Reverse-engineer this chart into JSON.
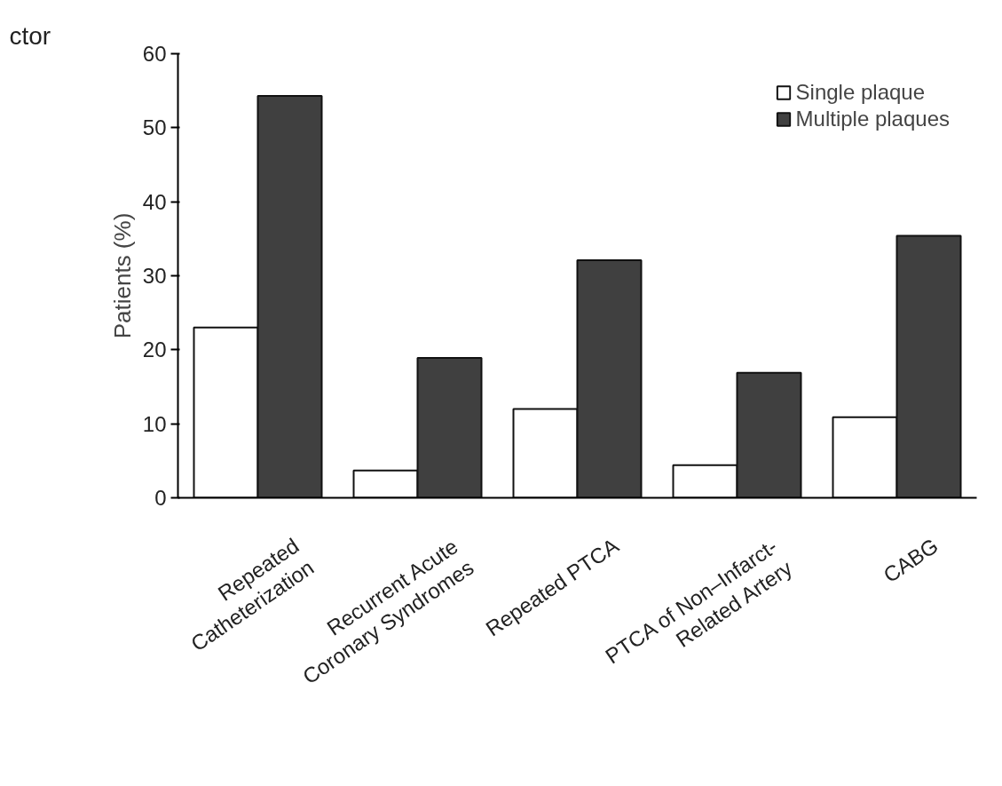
{
  "chart_data": {
    "type": "bar",
    "ylabel": "Patients (%)",
    "categories": [
      "Repeated\nCatheterization",
      "Recurrent Acute\nCoronary Syndromes",
      "Repeated PTCA",
      "PTCA of Non–Infarct-\nRelated Artery",
      "CABG"
    ],
    "series": [
      {
        "name": "Single plaque",
        "color": "#ffffff",
        "values": [
          23,
          3.7,
          12,
          4.4,
          10.9
        ]
      },
      {
        "name": "Multiple plaques",
        "color": "#404040",
        "values": [
          54.3,
          18.9,
          32.1,
          16.9,
          35.4
        ]
      }
    ],
    "ylim": [
      0,
      60
    ],
    "yticks": [
      0,
      10,
      20,
      30,
      40,
      50,
      60
    ],
    "grid": false,
    "legend": "top right",
    "annotations": [
      "ctor"
    ]
  }
}
